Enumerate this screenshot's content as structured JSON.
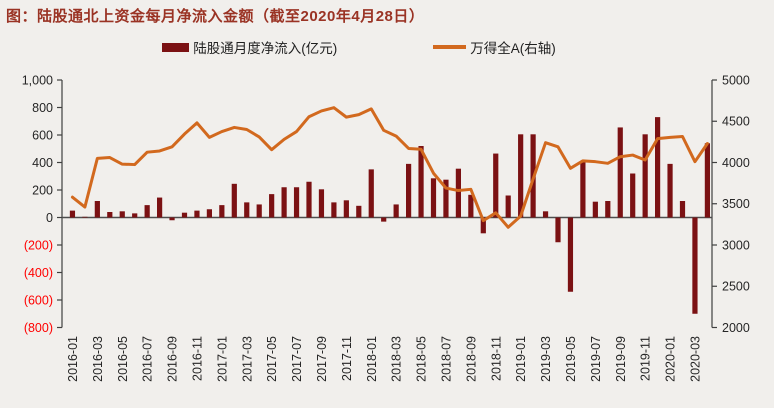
{
  "title": "图：陆股通北上资金每月净流入金额（截至2020年4月28日）",
  "legend": [
    {
      "label": "陆股通月度净流入(亿元)",
      "type": "bar",
      "color": "#7B1113"
    },
    {
      "label": "万得全A(右轴)",
      "type": "line",
      "color": "#D2691E"
    }
  ],
  "colors": {
    "background": "#F1EFEC",
    "title_text": "#9A3324",
    "bar": "#7B1113",
    "line": "#D2691E",
    "axis_text": "#262626",
    "negative_axis_text": "#FF0000",
    "spine": "#404040",
    "zero_line": "#4d4d4d"
  },
  "chart_data": {
    "type": "bar",
    "title": "图：陆股通北上资金每月净流入金额（截至2020年4月28日）",
    "grid": false,
    "legend_position": "top",
    "categories": [
      "2016-01",
      "2016-02",
      "2016-03",
      "2016-04",
      "2016-05",
      "2016-06",
      "2016-07",
      "2016-08",
      "2016-09",
      "2016-10",
      "2016-11",
      "2016-12",
      "2017-01",
      "2017-02",
      "2017-03",
      "2017-04",
      "2017-05",
      "2017-06",
      "2017-07",
      "2017-08",
      "2017-09",
      "2017-10",
      "2017-11",
      "2017-12",
      "2018-01",
      "2018-02",
      "2018-03",
      "2018-04",
      "2018-05",
      "2018-06",
      "2018-07",
      "2018-08",
      "2018-09",
      "2018-10",
      "2018-11",
      "2018-12",
      "2019-01",
      "2019-02",
      "2019-03",
      "2019-04",
      "2019-05",
      "2019-06",
      "2019-07",
      "2019-08",
      "2019-09",
      "2019-10",
      "2019-11",
      "2019-12",
      "2020-01",
      "2020-02",
      "2020-03",
      "2020-04"
    ],
    "series": [
      {
        "name": "陆股通月度净流入(亿元)",
        "type": "bar",
        "axis": "left",
        "color": "#7B1113",
        "values": [
          50,
          5,
          120,
          40,
          45,
          30,
          90,
          145,
          -20,
          35,
          50,
          60,
          90,
          245,
          110,
          95,
          170,
          220,
          220,
          260,
          205,
          110,
          125,
          85,
          350,
          -30,
          95,
          390,
          520,
          285,
          275,
          355,
          165,
          -115,
          465,
          160,
          605,
          605,
          45,
          -180,
          -540,
          405,
          115,
          120,
          655,
          320,
          605,
          730,
          390,
          120,
          -700,
          540
        ]
      },
      {
        "name": "万得全A(右轴)",
        "type": "line",
        "axis": "right",
        "color": "#D2691E",
        "values": [
          3580,
          3460,
          4050,
          4060,
          3980,
          3975,
          4125,
          4140,
          4190,
          4345,
          4480,
          4305,
          4375,
          4425,
          4400,
          4310,
          4155,
          4280,
          4375,
          4555,
          4625,
          4665,
          4550,
          4580,
          4650,
          4390,
          4320,
          4170,
          4160,
          3870,
          3690,
          3660,
          3675,
          3295,
          3390,
          3215,
          3350,
          3800,
          4240,
          4190,
          3930,
          4020,
          4010,
          3990,
          4070,
          4090,
          4030,
          4290,
          4305,
          4315,
          4010,
          4230
        ]
      }
    ],
    "left_axis": {
      "min": -800,
      "max": 1000,
      "step": 200,
      "tick_labels": [
        "1,000",
        "800",
        "600",
        "400",
        "200",
        "0",
        "(200)",
        "(400)",
        "(600)",
        "(800)"
      ],
      "negative_style": "red-parentheses"
    },
    "right_axis": {
      "min": 2000,
      "max": 5000,
      "step": 500,
      "tick_labels": [
        "5000",
        "4500",
        "4000",
        "3500",
        "3000",
        "2500",
        "2000"
      ]
    },
    "x_tick_labels": [
      "2016-01",
      "2016-03",
      "2016-05",
      "2016-07",
      "2016-09",
      "2016-11",
      "2017-01",
      "2017-03",
      "2017-05",
      "2017-07",
      "2017-09",
      "2017-11",
      "2018-01",
      "2018-03",
      "2018-05",
      "2018-07",
      "2018-09",
      "2018-11",
      "2019-01",
      "2019-03",
      "2019-05",
      "2019-07",
      "2019-09",
      "2019-11",
      "2020-01",
      "2020-03"
    ]
  }
}
